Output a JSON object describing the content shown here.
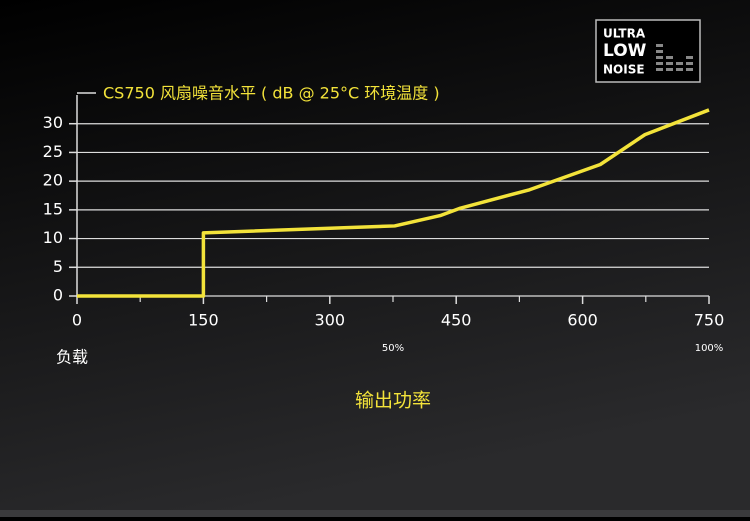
{
  "chart_data": {
    "type": "line",
    "title": "CS750 风扇噪音水平 ( dB @ 25°C 环境温度 )",
    "x_label": "输出功率",
    "load_label": "负载",
    "xlim": [
      0,
      750
    ],
    "ylim": [
      0,
      35
    ],
    "xticks": [
      0,
      150,
      300,
      450,
      600,
      750
    ],
    "xminorticks": [
      75,
      225,
      375,
      525,
      675
    ],
    "yticks": [
      0,
      5,
      10,
      15,
      20,
      25,
      30
    ],
    "grid": true,
    "annotations": [
      {
        "x": 375,
        "text": "50%"
      },
      {
        "x": 750,
        "text": "100%"
      }
    ],
    "series": [
      {
        "color": "#f3e33a",
        "x": [
          0,
          150,
          150,
          377,
          431,
          455,
          537,
          621,
          674,
          750
        ],
        "values": [
          0,
          0,
          11,
          12.2,
          14,
          15.3,
          18.5,
          22.9,
          28.1,
          32.4
        ]
      }
    ]
  },
  "logo": {
    "lines": [
      "ULTRA",
      "LOW",
      "NOISE"
    ]
  }
}
